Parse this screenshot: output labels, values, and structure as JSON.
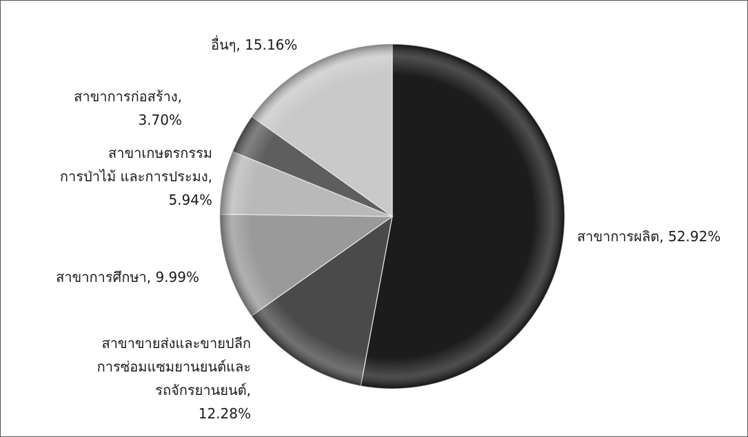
{
  "chart_data": {
    "type": "pie",
    "start_angle_deg": 0,
    "direction": "clockwise",
    "slices": [
      {
        "label": "สาขาการผลิต",
        "value": 52.92,
        "text_lines": [
          "สาขาการผลิต, 52.92%"
        ],
        "color": "#1c1c1c"
      },
      {
        "label": "สาขาขายส่งและขายปลีก การซ่อมแซมยานยนต์และรถจักรยานยนต์",
        "value": 12.28,
        "text_lines": [
          "สาขาขายส่งและขายปลีก",
          "การซ่อมแซมยานยนต์และ",
          "รถจักรยานยนต์,",
          "12.28%"
        ],
        "color": "#4a4a4a"
      },
      {
        "label": "สาขาการศึกษา",
        "value": 9.99,
        "text_lines": [
          "สาขาการศึกษา, 9.99%"
        ],
        "color": "#9a9a9a"
      },
      {
        "label": "สาขาเกษตรกรรม การป่าไม้ และการประมง",
        "value": 5.94,
        "text_lines": [
          "สาขาเกษตรกรรม",
          "การป่าไม้ และการประมง,",
          "5.94%"
        ],
        "color": "#b9b9b9"
      },
      {
        "label": "สาขาการก่อสร้าง",
        "value": 3.7,
        "text_lines": [
          "สาขาการก่อสร้าง,",
          "3.70%"
        ],
        "color": "#5e5e5e"
      },
      {
        "label": "อื่นๆ",
        "value": 15.16,
        "text_lines": [
          "อื่นๆ, 15.16%"
        ],
        "color": "#c9c9c9"
      }
    ]
  }
}
